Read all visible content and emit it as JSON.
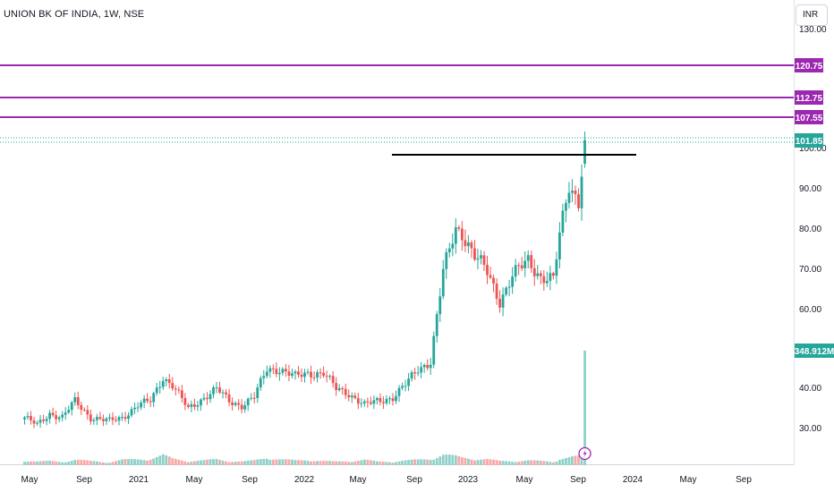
{
  "title": "UNION BK OF INDIA, 1W, NSE",
  "currency": "INR",
  "colors": {
    "up": "#26a69a",
    "down": "#ef5350",
    "vol_up": "#8fd1c9",
    "vol_down": "#f7a9a7",
    "level": "#9c27b0",
    "resistance": "#000000",
    "current": "#26a69a"
  },
  "chart_data": {
    "type": "candlestick",
    "title": "UNION BK OF INDIA, 1W, NSE",
    "x_ticks": [
      "May",
      "Sep",
      "2021",
      "May",
      "Sep",
      "2022",
      "May",
      "Sep",
      "2023",
      "May",
      "Sep",
      "2024",
      "May",
      "Sep"
    ],
    "y_ticks": [
      "30.00",
      "40.00",
      "60.00",
      "70.00",
      "80.00",
      "90.00",
      "100.00",
      "130.00"
    ],
    "price_levels": [
      {
        "label": "120.75",
        "value": 120.75
      },
      {
        "label": "112.75",
        "value": 112.75
      },
      {
        "label": "107.55",
        "value": 107.55
      }
    ],
    "resistance_line": {
      "value": 99.0
    },
    "current_price": {
      "label": "101.85",
      "value": 101.85
    },
    "volume_tag": {
      "label": "348.912M"
    },
    "anchors": [
      [
        "2020-04-20",
        33,
        16
      ],
      [
        "2020-05-18",
        31,
        12
      ],
      [
        "2020-06-15",
        34,
        14
      ],
      [
        "2020-07-13",
        33,
        12
      ],
      [
        "2020-08-10",
        37,
        18
      ],
      [
        "2020-09-14",
        33,
        14
      ],
      [
        "2020-10-26",
        32,
        10
      ],
      [
        "2020-11-23",
        33,
        18
      ],
      [
        "2020-12-28",
        36,
        20
      ],
      [
        "2021-01-25",
        37,
        22
      ],
      [
        "2021-02-22",
        43,
        34
      ],
      [
        "2021-03-15",
        41,
        22
      ],
      [
        "2021-04-19",
        35,
        14
      ],
      [
        "2021-05-24",
        38,
        16
      ],
      [
        "2021-06-21",
        40,
        20
      ],
      [
        "2021-07-19",
        37,
        14
      ],
      [
        "2021-08-16",
        36,
        12
      ],
      [
        "2021-09-13",
        38,
        16
      ],
      [
        "2021-10-11",
        45,
        26
      ],
      [
        "2021-11-08",
        45,
        20
      ],
      [
        "2021-12-13",
        43,
        16
      ],
      [
        "2022-01-10",
        44,
        18
      ],
      [
        "2022-02-14",
        44,
        14
      ],
      [
        "2022-03-14",
        40,
        12
      ],
      [
        "2022-04-11",
        39,
        14
      ],
      [
        "2022-05-16",
        36,
        18
      ],
      [
        "2022-06-13",
        37,
        12
      ],
      [
        "2022-07-18",
        38,
        12
      ],
      [
        "2022-08-15",
        41,
        16
      ],
      [
        "2022-09-12",
        45,
        18
      ],
      [
        "2022-10-10",
        47,
        22
      ],
      [
        "2022-11-07",
        69,
        36
      ],
      [
        "2022-12-05",
        80,
        30
      ],
      [
        "2022-12-19",
        79,
        26
      ],
      [
        "2023-01-16",
        73,
        22
      ],
      [
        "2023-02-13",
        69,
        20
      ],
      [
        "2023-03-13",
        62,
        14
      ],
      [
        "2023-04-10",
        68,
        14
      ],
      [
        "2023-05-15",
        72,
        16
      ],
      [
        "2023-06-12",
        68,
        14
      ],
      [
        "2023-07-10",
        67,
        12
      ],
      [
        "2023-07-24",
        78,
        22
      ],
      [
        "2023-08-14",
        91,
        26
      ],
      [
        "2023-09-04",
        87,
        30
      ],
      [
        "2023-09-18",
        101.85,
        42
      ]
    ]
  }
}
